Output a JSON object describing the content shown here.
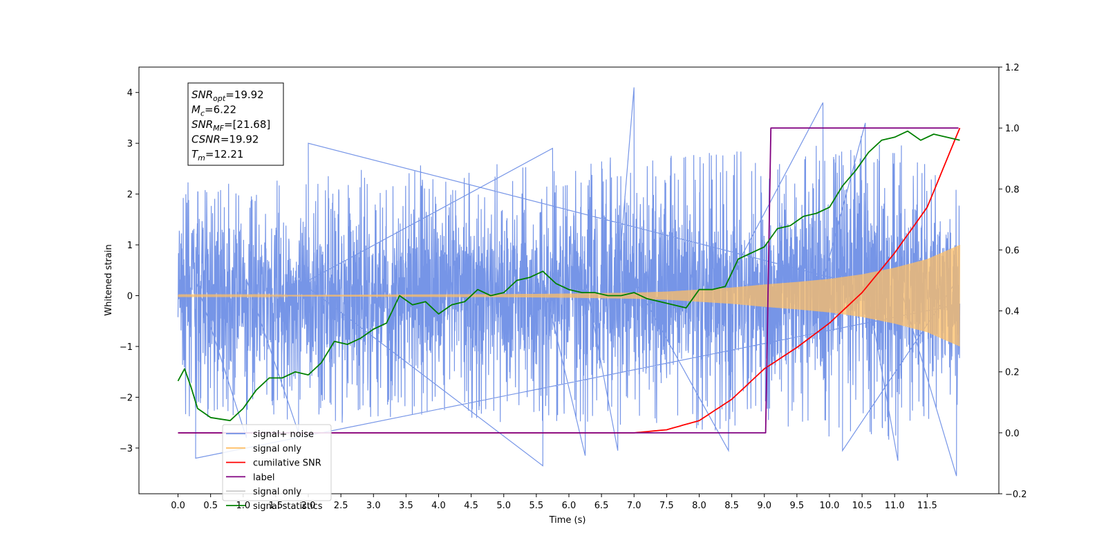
{
  "chart_data": {
    "type": "line",
    "title": "",
    "xlabel": "Time (s)",
    "ylabel": "Whitened strain",
    "y2label": "",
    "xlim": [
      -0.6,
      12.6
    ],
    "ylim": [
      -3.9,
      4.5
    ],
    "y2lim": [
      -0.2,
      1.2
    ],
    "xticks": [
      "0.0",
      "0.5",
      "1.0",
      "1.5",
      "2.0",
      "2.5",
      "3.0",
      "3.5",
      "4.0",
      "4.5",
      "5.0",
      "5.5",
      "6.0",
      "6.5",
      "7.0",
      "7.5",
      "8.0",
      "8.5",
      "9.0",
      "9.5",
      "10.0",
      "10.5",
      "11.0",
      "11.5"
    ],
    "yticks": [
      "4",
      "3",
      "2",
      "1",
      "0",
      "−1",
      "−2",
      "−3"
    ],
    "y2ticks": [
      "1.2",
      "1.0",
      "0.8",
      "0.6",
      "0.4",
      "0.2",
      "0.0",
      "−0.2"
    ],
    "grid": false,
    "legend_position": "lower-left",
    "legend": [
      {
        "label": "signal+ noise",
        "color": "#6f8fe6"
      },
      {
        "label": "signal only",
        "color": "#ffbf66"
      },
      {
        "label": "cumilative SNR",
        "color": "#ff0000"
      },
      {
        "label": "label",
        "color": "#800080"
      },
      {
        "label": "signal only",
        "color": "#cccccc"
      },
      {
        "label": "signal statistics",
        "color": "#008000"
      }
    ],
    "annotation": {
      "lines": [
        {
          "sym": "SNR",
          "sub": "opt",
          "val": "=19.92"
        },
        {
          "sym": "M",
          "sub": "c",
          "val": "=6.22"
        },
        {
          "sym": "SNR",
          "sub": "MF",
          "val": "=[21.68]"
        },
        {
          "sym": "CSNR",
          "sub": "",
          "val": "=19.92"
        },
        {
          "sym": "T",
          "sub": "m",
          "val": "=12.21"
        }
      ]
    },
    "series": [
      {
        "name": "signal+ noise",
        "axis": "left",
        "color": "#6f8fe6",
        "noise_envelope": {
          "x": [
            0.0,
            1.0,
            2.0,
            3.0,
            4.0,
            5.0,
            6.0,
            7.0,
            8.0,
            9.0,
            10.0,
            11.0,
            12.0
          ],
          "upper": [
            2.5,
            2.2,
            2.4,
            2.5,
            2.6,
            2.7,
            2.7,
            2.8,
            2.8,
            2.9,
            3.2,
            3.1,
            2.2
          ],
          "lower": [
            -2.4,
            -2.4,
            -2.5,
            -2.6,
            -2.4,
            -2.5,
            -2.5,
            -2.6,
            -2.7,
            -2.7,
            -2.8,
            -2.9,
            -2.3
          ]
        },
        "spikes": [
          [
            0.27,
            -3.2
          ],
          [
            1.05,
            -2.8
          ],
          [
            1.85,
            -2.7
          ],
          [
            5.6,
            -3.35
          ],
          [
            6.25,
            -3.15
          ],
          [
            6.75,
            -3.05
          ],
          [
            7.0,
            4.1
          ],
          [
            8.45,
            -3.05
          ],
          [
            9.9,
            3.8
          ],
          [
            10.55,
            3.4
          ],
          [
            11.05,
            -3.25
          ],
          [
            11.95,
            -3.55
          ],
          [
            10.2,
            -3.05
          ],
          [
            2.0,
            3.0
          ],
          [
            5.75,
            2.9
          ]
        ]
      },
      {
        "name": "signal only",
        "axis": "left",
        "color": "#ffbf66",
        "envelope": {
          "x": [
            0.0,
            1.0,
            2.0,
            3.0,
            4.0,
            5.0,
            6.0,
            6.5,
            7.0,
            7.5,
            8.0,
            8.5,
            9.0,
            9.5,
            10.0,
            10.5,
            11.0,
            11.5,
            12.0
          ],
          "amp": [
            0.01,
            0.01,
            0.015,
            0.02,
            0.025,
            0.03,
            0.04,
            0.05,
            0.06,
            0.08,
            0.12,
            0.16,
            0.22,
            0.27,
            0.33,
            0.42,
            0.55,
            0.72,
            1.0
          ]
        }
      },
      {
        "name": "cumilative SNR",
        "axis": "right",
        "color": "#ff0000",
        "x": [
          0.0,
          7.0,
          7.5,
          8.0,
          8.5,
          9.0,
          9.5,
          10.0,
          10.5,
          11.0,
          11.5,
          12.0
        ],
        "y": [
          0.0,
          0.0,
          0.01,
          0.04,
          0.11,
          0.21,
          0.28,
          0.36,
          0.46,
          0.59,
          0.74,
          1.0
        ]
      },
      {
        "name": "label",
        "axis": "right",
        "color": "#800080",
        "x": [
          0.0,
          9.02,
          9.1,
          11.98
        ],
        "y": [
          0.0,
          0.0,
          1.0,
          1.0
        ]
      },
      {
        "name": "signal statistics",
        "axis": "right",
        "color": "#008000",
        "x": [
          0.0,
          0.1,
          0.2,
          0.3,
          0.5,
          0.8,
          1.0,
          1.2,
          1.4,
          1.6,
          1.8,
          2.0,
          2.2,
          2.4,
          2.6,
          2.8,
          3.0,
          3.2,
          3.4,
          3.6,
          3.8,
          4.0,
          4.2,
          4.4,
          4.6,
          4.8,
          5.0,
          5.2,
          5.4,
          5.6,
          5.8,
          6.0,
          6.2,
          6.4,
          6.6,
          6.8,
          7.0,
          7.2,
          7.4,
          7.6,
          7.8,
          8.0,
          8.2,
          8.4,
          8.6,
          8.8,
          9.0,
          9.2,
          9.4,
          9.6,
          9.8,
          10.0,
          10.2,
          10.4,
          10.6,
          10.8,
          11.0,
          11.2,
          11.4,
          11.6,
          11.8,
          12.0
        ],
        "y": [
          0.17,
          0.21,
          0.15,
          0.08,
          0.05,
          0.04,
          0.08,
          0.14,
          0.18,
          0.18,
          0.2,
          0.19,
          0.23,
          0.3,
          0.29,
          0.31,
          0.34,
          0.36,
          0.45,
          0.42,
          0.43,
          0.39,
          0.42,
          0.43,
          0.47,
          0.45,
          0.46,
          0.5,
          0.51,
          0.53,
          0.49,
          0.47,
          0.46,
          0.46,
          0.45,
          0.45,
          0.46,
          0.44,
          0.43,
          0.42,
          0.41,
          0.47,
          0.47,
          0.48,
          0.57,
          0.59,
          0.61,
          0.67,
          0.68,
          0.71,
          0.72,
          0.74,
          0.81,
          0.86,
          0.92,
          0.96,
          0.97,
          0.99,
          0.96,
          0.98,
          0.97,
          0.96
        ]
      }
    ]
  }
}
